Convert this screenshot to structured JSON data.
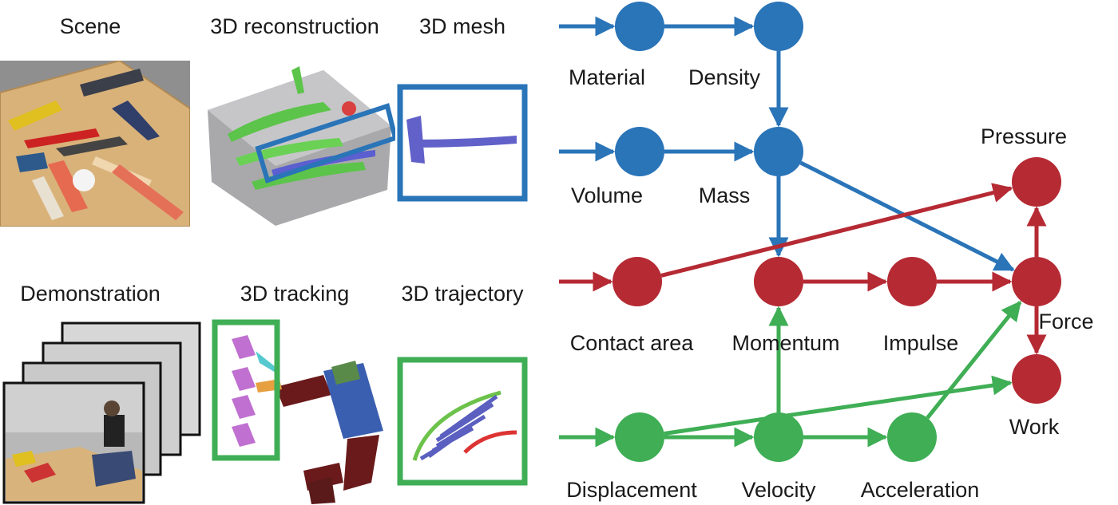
{
  "left_panels": {
    "scene": "Scene",
    "reconstruction": "3D reconstruction",
    "mesh": "3D mesh",
    "demonstration": "Demonstration",
    "tracking": "3D tracking",
    "trajectory": "3D trajectory"
  },
  "colors": {
    "blue": "#2a74b8",
    "red": "#b52a33",
    "green": "#3fae55"
  },
  "graph": {
    "nodes": {
      "material": "Material",
      "density": "Density",
      "volume": "Volume",
      "mass": "Mass",
      "pressure": "Pressure",
      "contact_area": "Contact area",
      "momentum": "Momentum",
      "impulse": "Impulse",
      "force": "Force",
      "work": "Work",
      "displacement": "Displacement",
      "velocity": "Velocity",
      "acceleration": "Acceleration"
    }
  }
}
